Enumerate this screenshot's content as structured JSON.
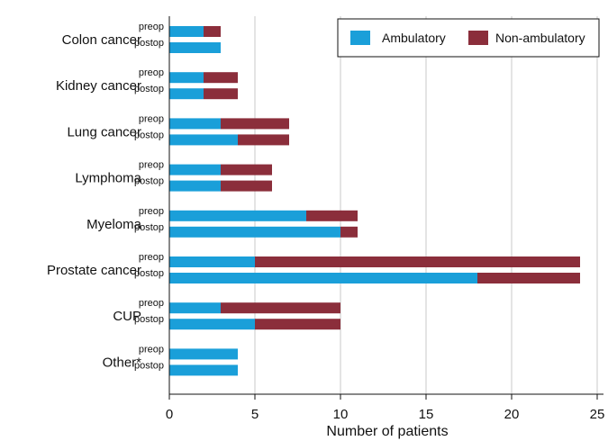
{
  "chart_data": {
    "type": "bar",
    "orientation": "horizontal",
    "stacked": true,
    "xlabel": "Number of patients",
    "xlim": [
      0,
      25
    ],
    "xticks": [
      0,
      5,
      10,
      15,
      20,
      25
    ],
    "grid": "vertical",
    "legend_position": "top-right",
    "series": [
      {
        "name": "Ambulatory",
        "color": "#1a9fd9"
      },
      {
        "name": "Non-ambulatory",
        "color": "#8b2e3b"
      }
    ],
    "categories": [
      {
        "name": "Colon cancer",
        "bars": [
          {
            "label": "preop",
            "values": [
              2,
              1
            ]
          },
          {
            "label": "postop",
            "values": [
              3,
              0
            ]
          }
        ]
      },
      {
        "name": "Kidney cancer",
        "bars": [
          {
            "label": "preop",
            "values": [
              2,
              2
            ]
          },
          {
            "label": "postop",
            "values": [
              2,
              2
            ]
          }
        ]
      },
      {
        "name": "Lung cancer",
        "bars": [
          {
            "label": "preop",
            "values": [
              3,
              4
            ]
          },
          {
            "label": "postop",
            "values": [
              4,
              3
            ]
          }
        ]
      },
      {
        "name": "Lymphoma",
        "bars": [
          {
            "label": "preop",
            "values": [
              3,
              3
            ]
          },
          {
            "label": "postop",
            "values": [
              3,
              3
            ]
          }
        ]
      },
      {
        "name": "Myeloma",
        "bars": [
          {
            "label": "preop",
            "values": [
              8,
              3
            ]
          },
          {
            "label": "postop",
            "values": [
              10,
              1
            ]
          }
        ]
      },
      {
        "name": "Prostate cancer",
        "bars": [
          {
            "label": "preop",
            "values": [
              5,
              19
            ]
          },
          {
            "label": "postop",
            "values": [
              18,
              6
            ]
          }
        ]
      },
      {
        "name": "CUP",
        "bars": [
          {
            "label": "preop",
            "values": [
              3,
              7
            ]
          },
          {
            "label": "postop",
            "values": [
              5,
              5
            ]
          }
        ]
      },
      {
        "name": "Other*",
        "bars": [
          {
            "label": "preop",
            "values": [
              4,
              0
            ]
          },
          {
            "label": "postop",
            "values": [
              4,
              0
            ]
          }
        ]
      }
    ]
  }
}
